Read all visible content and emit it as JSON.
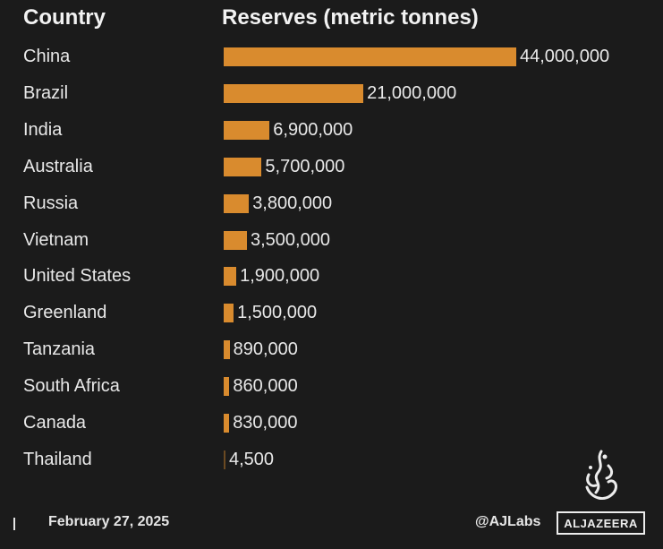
{
  "header": {
    "country_label": "Country",
    "reserves_label": "Reserves (metric tonnes)"
  },
  "chart_data": {
    "type": "bar",
    "orientation": "horizontal",
    "title": "",
    "xlabel": "Reserves (metric tonnes)",
    "ylabel": "Country",
    "bar_color": "#d98b2e",
    "background": "#1b1b1b",
    "grid": false,
    "categories": [
      "China",
      "Brazil",
      "India",
      "Australia",
      "Russia",
      "Vietnam",
      "United States",
      "Greenland",
      "Tanzania",
      "South Africa",
      "Canada",
      "Thailand"
    ],
    "values": [
      44000000,
      21000000,
      6900000,
      5700000,
      3800000,
      3500000,
      1900000,
      1500000,
      890000,
      860000,
      830000,
      4500
    ],
    "value_labels": [
      "44,000,000",
      "21,000,000",
      "6,900,000",
      "5,700,000",
      "3,800,000",
      "3,500,000",
      "1,900,000",
      "1,500,000",
      "890,000",
      "860,000",
      "830,000",
      "4,500"
    ],
    "xlim": [
      0,
      44000000
    ]
  },
  "footer": {
    "date": "February 27, 2025",
    "handle": "@AJLabs",
    "logo_text": "ALJAZEERA"
  },
  "icons": {
    "logo_emblem": "al-jazeera-calligraphy-logo"
  }
}
